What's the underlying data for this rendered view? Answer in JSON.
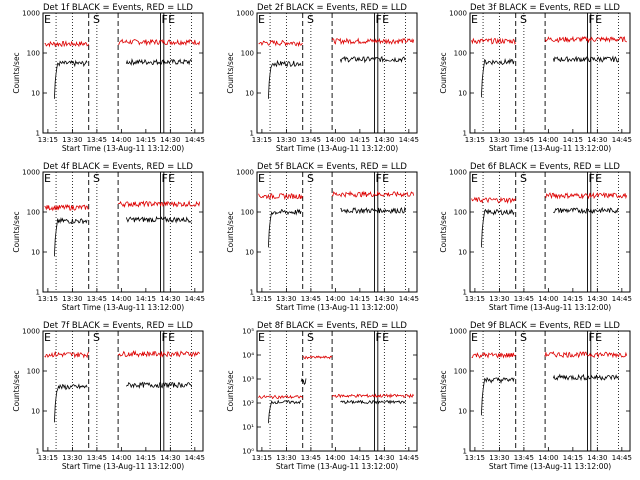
{
  "time_ticks": [
    "13:15",
    "13:30",
    "13:45",
    "14:00",
    "14:15",
    "14:30",
    "14:45"
  ],
  "x_axis_label": "Start Time (13-Aug-11 13:12:00)",
  "y_axis_label": "Counts/sec",
  "region_markers": [
    "E",
    "S",
    "F",
    "E"
  ],
  "colors": {
    "events": "#000000",
    "lld": "#dd0000"
  },
  "chart_data": [
    {
      "type": "line",
      "title": "Det 1f BLACK = Events, RED = LLD",
      "yscale": "log",
      "ylim": [
        1,
        1000
      ],
      "y_ticks": [
        "1",
        "10",
        "100",
        "1000"
      ],
      "xlim": [
        "13:12",
        "14:50"
      ],
      "series": [
        {
          "name": "Events",
          "base": 55,
          "post": 60,
          "color": "#000000"
        },
        {
          "name": "LLD",
          "base": 170,
          "post": 190,
          "color": "#dd0000"
        }
      ]
    },
    {
      "type": "line",
      "title": "Det 2f BLACK = Events, RED = LLD",
      "yscale": "log",
      "ylim": [
        1,
        1000
      ],
      "y_ticks": [
        "1",
        "10",
        "100",
        "1000"
      ],
      "xlim": [
        "13:12",
        "14:50"
      ],
      "series": [
        {
          "name": "Events",
          "base": 55,
          "post": 70,
          "color": "#000000"
        },
        {
          "name": "LLD",
          "base": 180,
          "post": 200,
          "color": "#dd0000"
        }
      ]
    },
    {
      "type": "line",
      "title": "Det 3f BLACK = Events, RED = LLD",
      "yscale": "log",
      "ylim": [
        1,
        1000
      ],
      "y_ticks": [
        "1",
        "10",
        "100",
        "1000"
      ],
      "xlim": [
        "13:12",
        "14:50"
      ],
      "series": [
        {
          "name": "Events",
          "base": 60,
          "post": 70,
          "color": "#000000"
        },
        {
          "name": "LLD",
          "base": 200,
          "post": 220,
          "color": "#dd0000"
        }
      ]
    },
    {
      "type": "line",
      "title": "Det 4f BLACK = Events, RED = LLD",
      "yscale": "log",
      "ylim": [
        1,
        1000
      ],
      "y_ticks": [
        "1",
        "10",
        "100",
        "1000"
      ],
      "xlim": [
        "13:12",
        "14:50"
      ],
      "series": [
        {
          "name": "Events",
          "base": 60,
          "post": 65,
          "color": "#000000"
        },
        {
          "name": "LLD",
          "base": 130,
          "post": 160,
          "color": "#dd0000"
        }
      ]
    },
    {
      "type": "line",
      "title": "Det 5f BLACK = Events, RED = LLD",
      "yscale": "log",
      "ylim": [
        1,
        1000
      ],
      "y_ticks": [
        "1",
        "10",
        "100",
        "1000"
      ],
      "xlim": [
        "13:12",
        "14:50"
      ],
      "series": [
        {
          "name": "Events",
          "base": 100,
          "post": 110,
          "color": "#000000"
        },
        {
          "name": "LLD",
          "base": 250,
          "post": 280,
          "color": "#dd0000"
        }
      ]
    },
    {
      "type": "line",
      "title": "Det 6f BLACK = Events, RED = LLD",
      "yscale": "log",
      "ylim": [
        1,
        1000
      ],
      "y_ticks": [
        "1",
        "10",
        "100",
        "1000"
      ],
      "xlim": [
        "13:12",
        "14:50"
      ],
      "series": [
        {
          "name": "Events",
          "base": 100,
          "post": 110,
          "color": "#000000"
        },
        {
          "name": "LLD",
          "base": 200,
          "post": 260,
          "color": "#dd0000"
        }
      ]
    },
    {
      "type": "line",
      "title": "Det 7f BLACK = Events, RED = LLD",
      "yscale": "log",
      "ylim": [
        1,
        1000
      ],
      "y_ticks": [
        "1",
        "10",
        "100",
        "1000"
      ],
      "xlim": [
        "13:12",
        "14:50"
      ],
      "series": [
        {
          "name": "Events",
          "base": 40,
          "post": 45,
          "color": "#000000"
        },
        {
          "name": "LLD",
          "base": 260,
          "post": 270,
          "color": "#dd0000"
        }
      ]
    },
    {
      "type": "line",
      "title": "Det 8f BLACK = Events, RED = LLD",
      "yscale": "log",
      "ylim": [
        1,
        100000
      ],
      "y_ticks": [
        "10⁰",
        "10¹",
        "10²",
        "10³",
        "10⁴",
        "10⁵"
      ],
      "xlim": [
        "13:12",
        "14:50"
      ],
      "series": [
        {
          "name": "Events",
          "base": 110,
          "post": 110,
          "color": "#000000"
        },
        {
          "name": "LLD",
          "base": 180,
          "post": 200,
          "color": "#dd0000"
        }
      ]
    },
    {
      "type": "line",
      "title": "Det 9f BLACK = Events, RED = LLD",
      "yscale": "log",
      "ylim": [
        1,
        1000
      ],
      "y_ticks": [
        "1",
        "10",
        "100",
        "1000"
      ],
      "xlim": [
        "13:12",
        "14:50"
      ],
      "series": [
        {
          "name": "Events",
          "base": 60,
          "post": 70,
          "color": "#000000"
        },
        {
          "name": "LLD",
          "base": 250,
          "post": 260,
          "color": "#dd0000"
        }
      ]
    }
  ]
}
